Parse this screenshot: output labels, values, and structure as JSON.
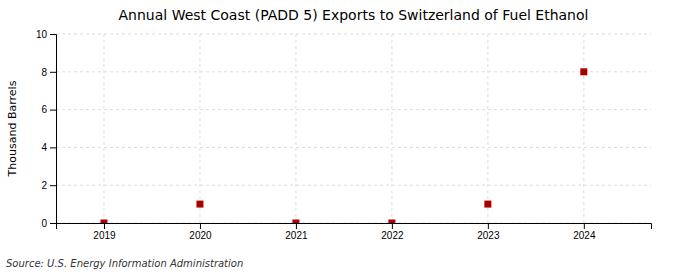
{
  "chart_data": {
    "type": "scatter",
    "title": "Annual West Coast (PADD 5) Exports to Switzerland of Fuel Ethanol",
    "ylabel": "Thousand Barrels",
    "annotation": "Source: U.S. Energy Information Administration",
    "x": [
      2019,
      2020,
      2021,
      2022,
      2023,
      2024
    ],
    "values": [
      0,
      1,
      0,
      0,
      1,
      8
    ],
    "color": "#aa0000",
    "marker": "square",
    "xlim": [
      2018.5,
      2024.7
    ],
    "ylim": [
      0,
      10
    ],
    "xticks": [
      2019,
      2020,
      2021,
      2022,
      2023,
      2024
    ],
    "yticks": [
      0,
      2,
      4,
      6,
      8,
      10
    ],
    "grid": true
  }
}
